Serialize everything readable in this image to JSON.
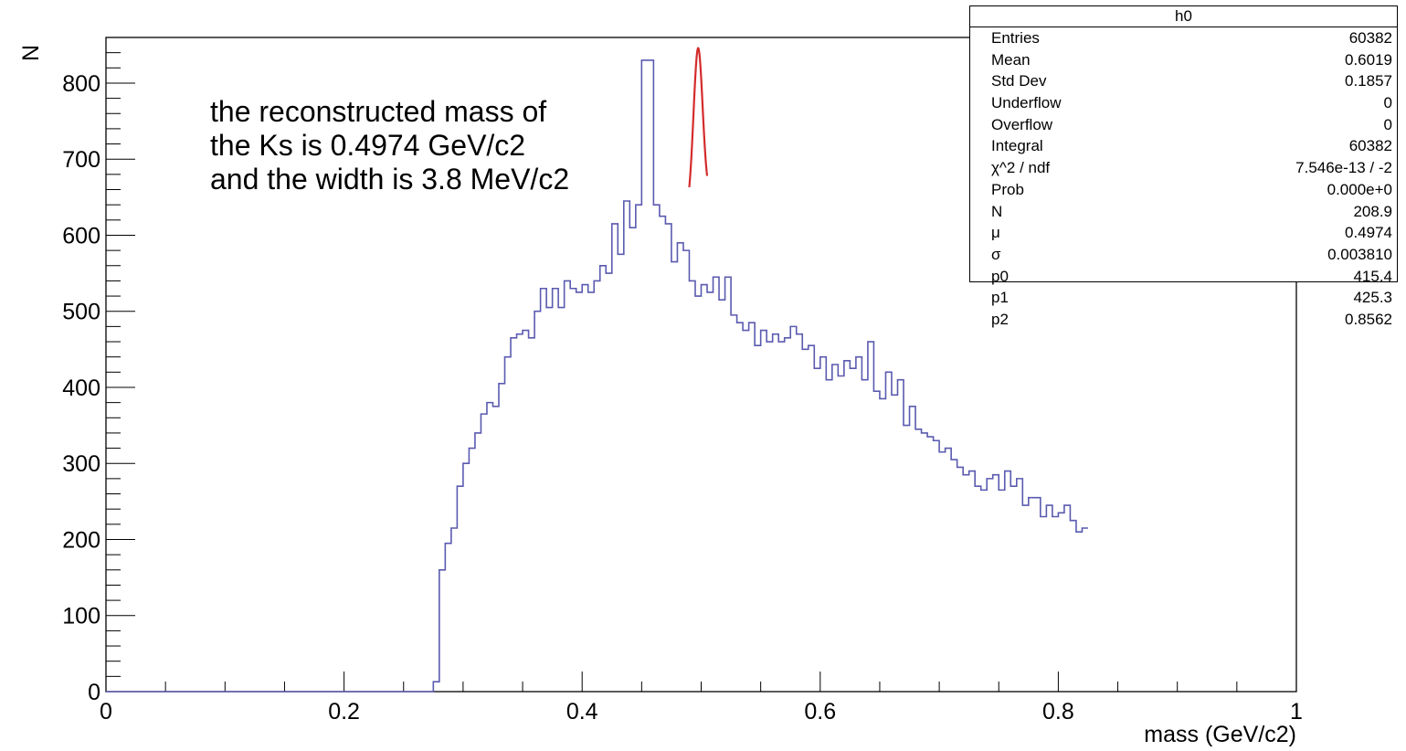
{
  "chart_data": {
    "type": "histogram",
    "xlabel": "mass (GeV/c2)",
    "ylabel": "N",
    "xlim": [
      0,
      1
    ],
    "ylim": [
      0,
      860
    ],
    "x_ticks": [
      "0",
      "0.2",
      "0.4",
      "0.6",
      "0.8",
      "1"
    ],
    "y_ticks": [
      "0",
      "100",
      "200",
      "300",
      "400",
      "500",
      "600",
      "700",
      "800"
    ],
    "bin_edges_start": 0.275,
    "bin_width": 0.005,
    "values": [
      13,
      160,
      195,
      215,
      270,
      300,
      320,
      340,
      365,
      380,
      375,
      405,
      440,
      465,
      470,
      475,
      465,
      500,
      530,
      505,
      530,
      505,
      540,
      530,
      525,
      535,
      525,
      540,
      560,
      550,
      615,
      575,
      645,
      610,
      640,
      830,
      830,
      640,
      625,
      615,
      565,
      590,
      580,
      540,
      520,
      535,
      525,
      545,
      515,
      545,
      495,
      485,
      475,
      485,
      455,
      475,
      460,
      470,
      460,
      465,
      480,
      470,
      450,
      455,
      425,
      440,
      410,
      430,
      415,
      435,
      425,
      440,
      410,
      460,
      395,
      385,
      420,
      390,
      410,
      350,
      375,
      345,
      340,
      335,
      330,
      315,
      320,
      305,
      295,
      285,
      290,
      270,
      265,
      280,
      285,
      265,
      290,
      270,
      280,
      245,
      255,
      255,
      230,
      245,
      230,
      235,
      245,
      225,
      210,
      215
    ],
    "fit": {
      "color": "#d42b2b",
      "mu": 0.4974,
      "sigma": 0.00381,
      "N": 208.9,
      "p0": 415.4,
      "p1": 425.3,
      "p2": 0.8562,
      "x_range": [
        0.49,
        0.505
      ]
    },
    "histogram_color": "#5a5ab0",
    "annotation": [
      "the reconstructed mass of",
      "the Ks is 0.4974 GeV/c2",
      "and the width is 3.8 MeV/c2"
    ],
    "stats_box": {
      "title": "h0",
      "rows": [
        {
          "label": "Entries",
          "value": "60382"
        },
        {
          "label": "Mean",
          "value": "0.6019"
        },
        {
          "label": "Std Dev",
          "value": "0.1857"
        },
        {
          "label": "Underflow",
          "value": "0"
        },
        {
          "label": "Overflow",
          "value": "0"
        },
        {
          "label": "Integral",
          "value": "60382"
        },
        {
          "label": "χ^2 / ndf",
          "value": "7.546e-13 / -2"
        },
        {
          "label": "Prob",
          "value": "0.000e+0"
        },
        {
          "label": "N",
          "value": "208.9"
        },
        {
          "label": "μ",
          "value": "0.4974"
        },
        {
          "label": "σ",
          "value": "0.003810"
        },
        {
          "label": "p0",
          "value": "415.4"
        },
        {
          "label": "p1",
          "value": "425.3"
        },
        {
          "label": "p2",
          "value": "0.8562"
        }
      ]
    }
  }
}
